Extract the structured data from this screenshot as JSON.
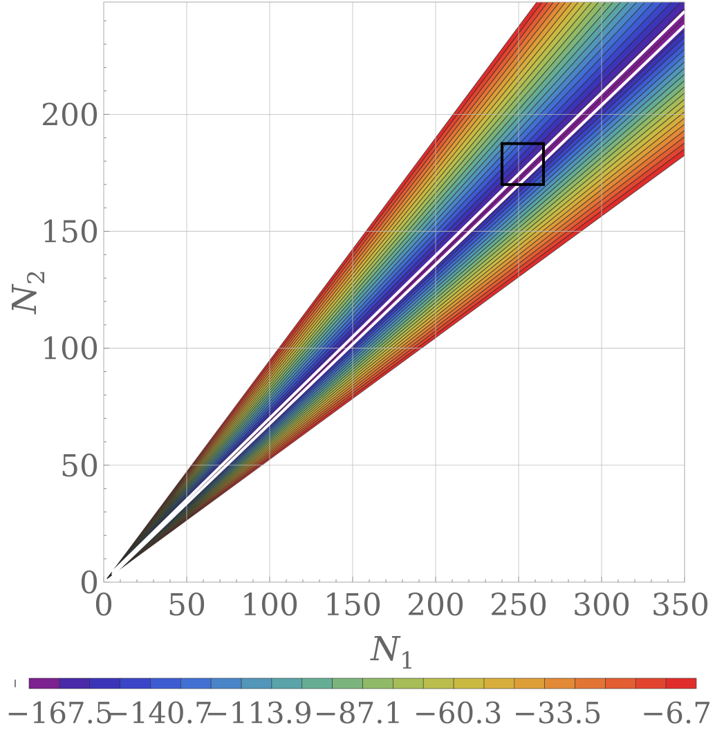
{
  "chart_data": {
    "type": "heatmap",
    "subtype": "filled-contour",
    "title": "",
    "xlabel": "N",
    "xlabel_sub": "1",
    "ylabel": "N",
    "ylabel_sub": "2",
    "xlim": [
      0,
      350
    ],
    "ylim": [
      0,
      248
    ],
    "xticks": [
      0,
      50,
      100,
      150,
      200,
      250,
      300,
      350
    ],
    "yticks": [
      0,
      50,
      100,
      150,
      200
    ],
    "grid": true,
    "region": {
      "upper_boundary_slope": 0.952,
      "lower_boundary_slope": 0.52,
      "white_line_a": {
        "x": [
          5,
          350
        ],
        "y": [
          4,
          244
        ]
      },
      "white_line_b": {
        "x": [
          5,
          350
        ],
        "y": [
          3,
          238
        ]
      }
    },
    "highlight_box": {
      "x": [
        240,
        265
      ],
      "y": [
        170,
        187.5
      ]
    },
    "colorbar": {
      "min": -174.2,
      "max": -0.0,
      "step": 6.7,
      "labels": [
        "−167.5",
        "−140.7",
        "−113.9",
        "−87.1",
        "−60.3",
        "−33.5",
        "−6.7"
      ],
      "colors": [
        "#7d2090",
        "#4a2aa8",
        "#3c34b8",
        "#3b45c8",
        "#3e5cd2",
        "#4270d2",
        "#4a85c8",
        "#5296ba",
        "#5aa3a8",
        "#66ad94",
        "#7cb47d",
        "#91ba68",
        "#a6bd58",
        "#bbbe4c",
        "#cbba42",
        "#d7ae3c",
        "#dd9e38",
        "#e28a36",
        "#e37534",
        "#e35e32",
        "#e2452f",
        "#e02d2b"
      ]
    }
  }
}
